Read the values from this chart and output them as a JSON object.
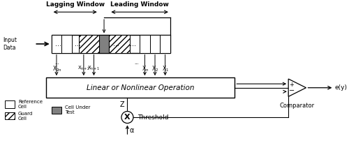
{
  "bg_color": "#ffffff",
  "input_label": "Input\nData",
  "lagging_window_label": "Lagging Window",
  "leading_window_label": "Leading Window",
  "operation_label": "Linear or Nonlinear Operation",
  "comparator_label": "Comparator",
  "ey_label": "e(y)",
  "z_label": "Z",
  "alpha_label": "α",
  "threshold_label": "Threshold",
  "cell_color_ref": "#ffffff",
  "cell_color_guard": "#ffffff",
  "cell_color_cut": "#808080",
  "cell_hatch": "////",
  "legend_ref_label": "Reference\nCell",
  "legend_guard_label": "Guard\nCell",
  "legend_cut_label": "Cell Under\nTest"
}
